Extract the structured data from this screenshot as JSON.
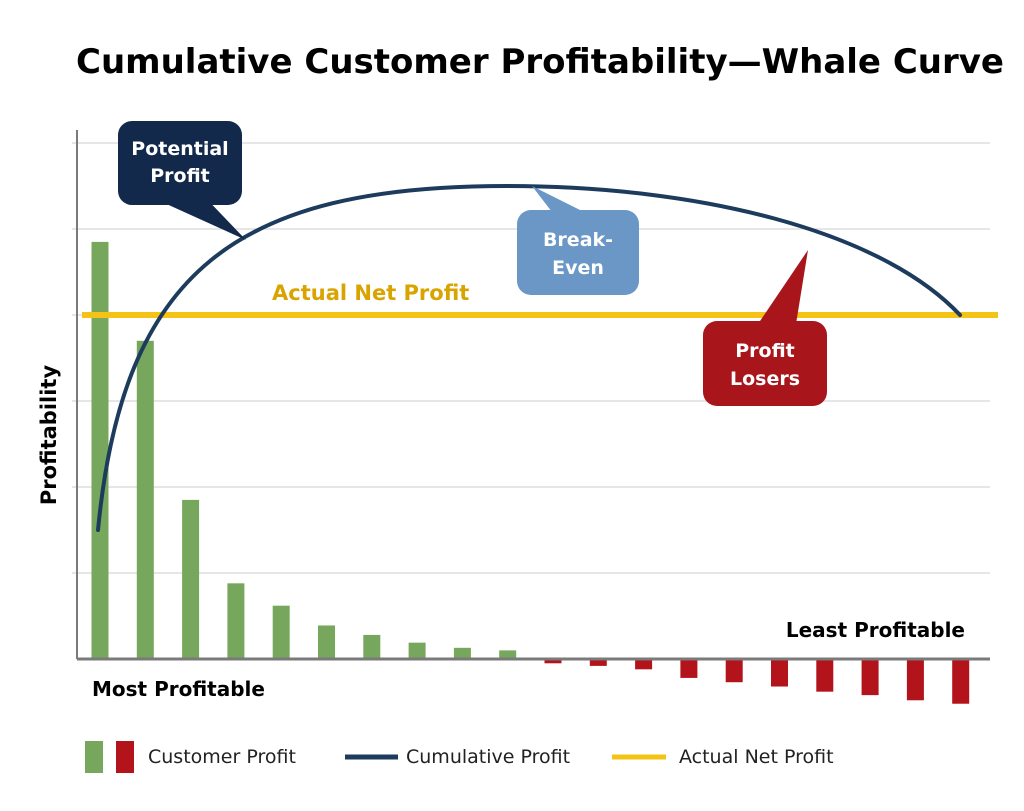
{
  "colors": {
    "positive_bar": "#77A75C",
    "negative_bar": "#B3131B",
    "cumulative_line": "#1D3B5C",
    "net_profit_line": "#F5C315",
    "grid": "#D6D6D6",
    "axis": "#7A7A7A",
    "callout_potential": "#13294B",
    "callout_breakeven": "#6A97C5",
    "callout_losers": "#A8151B",
    "net_profit_label": "#D9A400"
  },
  "chart_data": {
    "type": "bar",
    "title": "Cumulative Customer Profitability—Whale Curve",
    "ylabel": "Profitability",
    "xlabel": "",
    "x_start_label": "Most Profitable",
    "x_end_label": "Least Profitable",
    "ylim": [
      -0.6,
      6
    ],
    "grid": true,
    "series": [
      {
        "name": "Customer Profit",
        "type": "bar",
        "values": [
          4.85,
          3.7,
          1.85,
          0.88,
          0.62,
          0.39,
          0.28,
          0.19,
          0.13,
          0.1,
          -0.05,
          -0.08,
          -0.12,
          -0.22,
          -0.27,
          -0.32,
          -0.38,
          -0.42,
          -0.48,
          -0.52
        ]
      },
      {
        "name": "Cumulative Profit",
        "type": "line",
        "start_value": 1.5,
        "peak_value": 5.5,
        "peak_index": 9,
        "end_value": 4.0
      },
      {
        "name": "Actual Net Profit",
        "type": "hline",
        "value": 4.0
      }
    ],
    "annotations": {
      "potential": [
        "Potential",
        "Profit"
      ],
      "breakeven": [
        "Break-",
        "Even"
      ],
      "losers": [
        "Profit",
        "Losers"
      ],
      "net_profit_label": "Actual Net Profit"
    },
    "legend": {
      "placement": "bottom",
      "items": [
        "Customer Profit",
        "Cumulative Profit",
        "Actual Net Profit"
      ]
    }
  }
}
